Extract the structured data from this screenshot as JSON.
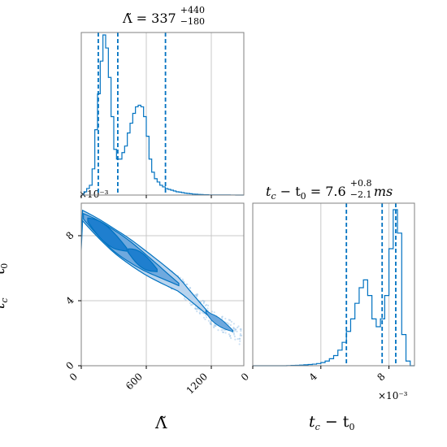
{
  "colors": {
    "main": "#0072c1",
    "fill_light": "#b9d4ee",
    "fill_mid": "#6fa9de",
    "fill_dark": "#1f7fcf",
    "grid": "#c8c8c8",
    "axis": "#808080"
  },
  "chart_data": [
    {
      "type": "histogram",
      "panel": "top-left",
      "title_symbol": "Λ̃",
      "title_value": "337",
      "title_plus": "+440",
      "title_minus": "−180",
      "xlim": [
        0,
        1500
      ],
      "quantile_lines": [
        157,
        337,
        777
      ],
      "bins": [
        0,
        25,
        50,
        75,
        100,
        125,
        150,
        175,
        200,
        225,
        250,
        275,
        300,
        325,
        350,
        375,
        400,
        425,
        450,
        475,
        500,
        525,
        550,
        575,
        600,
        625,
        650,
        675,
        700,
        725,
        750,
        775,
        800,
        825,
        850,
        875,
        900,
        925,
        950,
        975,
        1000,
        1025,
        1050,
        1075,
        1100,
        1125,
        1150,
        1175,
        1200,
        1225,
        1250,
        1275,
        1300,
        1325,
        1350,
        1375,
        1400,
        1425,
        1450,
        1475,
        1500
      ],
      "counts": [
        0.0,
        0.02,
        0.04,
        0.06,
        0.16,
        0.4,
        0.62,
        0.82,
        0.98,
        0.9,
        0.72,
        0.48,
        0.28,
        0.22,
        0.22,
        0.26,
        0.3,
        0.38,
        0.44,
        0.5,
        0.54,
        0.55,
        0.54,
        0.48,
        0.36,
        0.22,
        0.14,
        0.1,
        0.08,
        0.06,
        0.05,
        0.04,
        0.035,
        0.03,
        0.025,
        0.02,
        0.018,
        0.015,
        0.012,
        0.01,
        0.008,
        0.006,
        0.005,
        0.004,
        0.003,
        0.002,
        0.002,
        0.001,
        0.001,
        0.001,
        0.001,
        0.0005,
        0.0005,
        0.0005,
        0.0005,
        0.0002,
        0.0002,
        0.0001,
        0.0001,
        0.0
      ],
      "x_ticks": [
        0,
        600,
        1200
      ]
    },
    {
      "type": "contour",
      "panel": "bottom-left",
      "xlim": [
        0,
        1500
      ],
      "ylim": [
        0,
        0.01
      ],
      "x_ticks": [
        0,
        600,
        1200
      ],
      "x_tick_labels": [
        "0",
        "600",
        "1200"
      ],
      "y_ticks": [
        0,
        0.004,
        0.008
      ],
      "y_tick_labels": [
        "0",
        "4",
        "8"
      ],
      "y_scale_label": "×10⁻³",
      "xlabel": "Λ̃",
      "ylabel_main": "t",
      "ylabel_sub1": "c",
      "ylabel_mid": " − t",
      "ylabel_sub2": "0",
      "trend": {
        "x": [
          0,
          300,
          600,
          900,
          1200,
          1500
        ],
        "y": [
          0.0093,
          0.0077,
          0.0063,
          0.005,
          0.003,
          0.0017
        ]
      }
    },
    {
      "type": "histogram",
      "panel": "bottom-right",
      "title_lhs_a": "t",
      "title_lhs_sub1": "c",
      "title_lhs_mid": " − t",
      "title_lhs_sub2": "0",
      "title_value": " = 7.6",
      "title_plus": "+0.8",
      "title_minus": "−2.1",
      "title_unit": "ms",
      "xlim": [
        0,
        0.0095
      ],
      "x_ticks": [
        0,
        0.004,
        0.008
      ],
      "x_tick_labels": [
        "0",
        "4",
        "8"
      ],
      "x_scale_label": "×10⁻³",
      "quantile_lines": [
        0.0055,
        0.0076,
        0.0084
      ],
      "bins": [
        0.0,
        0.00025,
        0.0005,
        0.00075,
        0.001,
        0.00125,
        0.0015,
        0.00175,
        0.002,
        0.00225,
        0.0025,
        0.00275,
        0.003,
        0.00325,
        0.0035,
        0.00375,
        0.004,
        0.00425,
        0.0045,
        0.00475,
        0.005,
        0.00525,
        0.0055,
        0.00575,
        0.006,
        0.00625,
        0.0065,
        0.00675,
        0.007,
        0.00725,
        0.0075,
        0.00775,
        0.008,
        0.00825,
        0.0085,
        0.00875,
        0.009,
        0.00925,
        0.0095
      ],
      "counts": [
        0,
        0,
        0,
        0,
        0,
        0,
        0,
        0,
        0.001,
        0.002,
        0.003,
        0.004,
        0.006,
        0.008,
        0.01,
        0.014,
        0.02,
        0.03,
        0.045,
        0.065,
        0.1,
        0.15,
        0.22,
        0.3,
        0.4,
        0.5,
        0.55,
        0.45,
        0.3,
        0.25,
        0.3,
        0.45,
        0.75,
        1.0,
        0.85,
        0.2,
        0.03,
        0.0
      ],
      "xlabel_main": "t",
      "xlabel_sub1": "c",
      "xlabel_mid": " − t",
      "xlabel_sub2": "0"
    }
  ]
}
